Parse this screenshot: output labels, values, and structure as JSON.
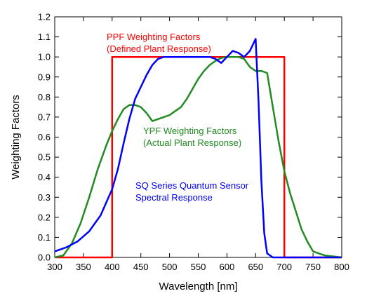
{
  "chart_data": {
    "type": "line",
    "title": "",
    "xlabel": "Wavelength [nm]",
    "ylabel": "Weighting Factors",
    "xlim": [
      300,
      800
    ],
    "ylim": [
      0,
      1.2
    ],
    "x_ticks": [
      "300",
      "350",
      "400",
      "450",
      "500",
      "550",
      "600",
      "650",
      "700",
      "750",
      "800"
    ],
    "y_ticks": [
      "0.0",
      "0.1",
      "0.2",
      "0.3",
      "0.4",
      "0.5",
      "0.6",
      "0.7",
      "0.8",
      "0.9",
      "1.0",
      "1.1",
      "1.2"
    ],
    "grid": false,
    "legend": "none",
    "series": [
      {
        "name": "PPF Weighting Factors (Defined Plant Response)",
        "color": "#ff0000",
        "x": [
          300,
          400,
          400,
          700,
          700,
          800
        ],
        "y": [
          0.0,
          0.0,
          1.0,
          1.0,
          0.0,
          0.0
        ]
      },
      {
        "name": "YPF Weighting Factors (Actual Plant Response)",
        "color": "#228b22",
        "x": [
          300,
          315,
          330,
          345,
          360,
          375,
          390,
          400,
          410,
          420,
          430,
          440,
          450,
          460,
          470,
          480,
          490,
          500,
          510,
          520,
          530,
          540,
          550,
          560,
          570,
          580,
          590,
          600,
          610,
          620,
          630,
          640,
          650,
          660,
          670,
          680,
          690,
          700,
          710,
          720,
          730,
          740,
          750,
          760,
          770,
          800
        ],
        "y": [
          0.0,
          0.01,
          0.07,
          0.17,
          0.3,
          0.44,
          0.56,
          0.63,
          0.69,
          0.74,
          0.76,
          0.76,
          0.75,
          0.72,
          0.68,
          0.69,
          0.7,
          0.71,
          0.73,
          0.75,
          0.79,
          0.84,
          0.89,
          0.93,
          0.96,
          0.98,
          0.995,
          1.0,
          1.0,
          1.0,
          0.99,
          0.95,
          0.93,
          0.93,
          0.92,
          0.75,
          0.58,
          0.43,
          0.32,
          0.23,
          0.14,
          0.08,
          0.03,
          0.02,
          0.01,
          0.0
        ]
      },
      {
        "name": "SQ Series Quantum Sensor Spectral Response",
        "color": "#0000ff",
        "x": [
          300,
          320,
          340,
          360,
          380,
          400,
          410,
          420,
          430,
          440,
          450,
          460,
          470,
          480,
          490,
          500,
          510,
          520,
          530,
          540,
          550,
          560,
          570,
          580,
          590,
          600,
          610,
          620,
          630,
          640,
          645,
          650,
          655,
          660,
          665,
          670,
          680,
          700,
          800
        ],
        "y": [
          0.03,
          0.05,
          0.08,
          0.13,
          0.21,
          0.34,
          0.44,
          0.57,
          0.69,
          0.79,
          0.85,
          0.91,
          0.96,
          0.99,
          1.0,
          1.0,
          1.0,
          1.0,
          1.0,
          1.0,
          1.0,
          1.0,
          1.0,
          0.99,
          0.97,
          1.0,
          1.03,
          1.02,
          1.0,
          1.03,
          1.06,
          1.09,
          0.78,
          0.38,
          0.12,
          0.02,
          0.0,
          0.0,
          0.0
        ]
      }
    ],
    "annotations": [
      {
        "lines": [
          "PPF Weighting Factors",
          "(Defined Plant Response)"
        ],
        "color": "#ff0000"
      },
      {
        "lines": [
          "YPF Weighting Factors",
          "(Actual Plant Response)"
        ],
        "color": "#228b22"
      },
      {
        "lines": [
          "SQ Series Quantum Sensor",
          "Spectral Response"
        ],
        "color": "#0000ff"
      }
    ]
  }
}
